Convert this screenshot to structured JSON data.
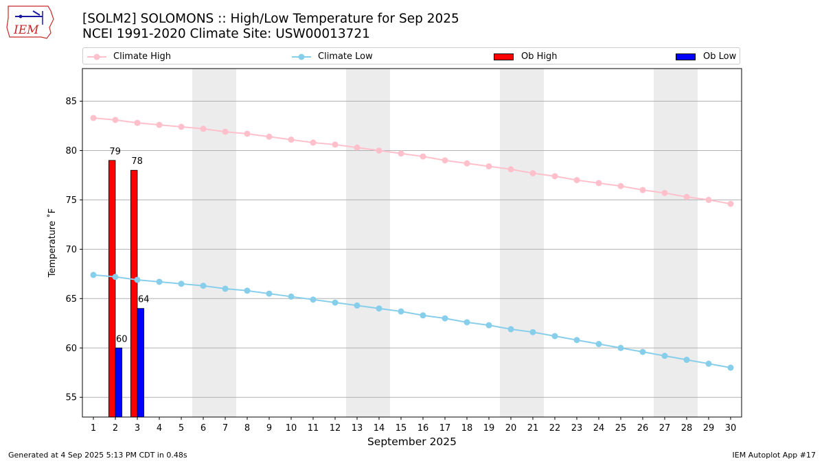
{
  "header": {
    "title_line1": "[SOLM2] SOLOMONS :: High/Low Temperature for Sep 2025",
    "title_line2": "NCEI 1991-2020 Climate Site: USW00013721",
    "logo_text": "IEM"
  },
  "legend": {
    "climate_high": "Climate High",
    "climate_low": "Climate Low",
    "ob_high": "Ob High",
    "ob_low": "Ob Low"
  },
  "colors": {
    "climate_high": "#ffc0cb",
    "climate_low": "#87ceeb",
    "ob_high": "#ff0000",
    "ob_low": "#0000ff",
    "weekend_shade": "#ececec",
    "grid": "#b0b0b0"
  },
  "footer": {
    "left": "Generated at 4 Sep 2025 5:13 PM CDT in 0.48s",
    "right": "IEM Autoplot App #17"
  },
  "chart_data": {
    "type": "bar",
    "xlabel": "September 2025",
    "ylabel": "Temperature ˚F",
    "ylim": [
      53,
      88.3
    ],
    "xlim": [
      0.5,
      30.5
    ],
    "grid": true,
    "yticks": [
      55,
      60,
      65,
      70,
      75,
      80,
      85
    ],
    "days": [
      1,
      2,
      3,
      4,
      5,
      6,
      7,
      8,
      9,
      10,
      11,
      12,
      13,
      14,
      15,
      16,
      17,
      18,
      19,
      20,
      21,
      22,
      23,
      24,
      25,
      26,
      27,
      28,
      29,
      30
    ],
    "weekend_spans": [
      [
        6,
        7
      ],
      [
        13,
        14
      ],
      [
        20,
        21
      ],
      [
        27,
        28
      ]
    ],
    "series": [
      {
        "name": "Climate High",
        "kind": "line",
        "values": [
          83.3,
          83.1,
          82.8,
          82.6,
          82.4,
          82.2,
          81.9,
          81.7,
          81.4,
          81.1,
          80.8,
          80.6,
          80.3,
          80.0,
          79.7,
          79.4,
          79.0,
          78.7,
          78.4,
          78.1,
          77.7,
          77.4,
          77.0,
          76.7,
          76.4,
          76.0,
          75.7,
          75.3,
          75.0,
          74.6
        ]
      },
      {
        "name": "Climate Low",
        "kind": "line",
        "values": [
          67.4,
          67.2,
          66.9,
          66.7,
          66.5,
          66.3,
          66.0,
          65.8,
          65.5,
          65.2,
          64.9,
          64.6,
          64.3,
          64.0,
          63.7,
          63.3,
          63.0,
          62.6,
          62.3,
          61.9,
          61.6,
          61.2,
          60.8,
          60.4,
          60.0,
          59.6,
          59.2,
          58.8,
          58.4,
          58.0
        ]
      },
      {
        "name": "Ob High",
        "kind": "bar",
        "days": [
          2,
          3
        ],
        "values": [
          79,
          78
        ],
        "labels": [
          "79",
          "78"
        ]
      },
      {
        "name": "Ob Low",
        "kind": "bar",
        "days": [
          2,
          3
        ],
        "values": [
          60,
          64
        ],
        "labels": [
          "60",
          "64"
        ]
      }
    ]
  }
}
